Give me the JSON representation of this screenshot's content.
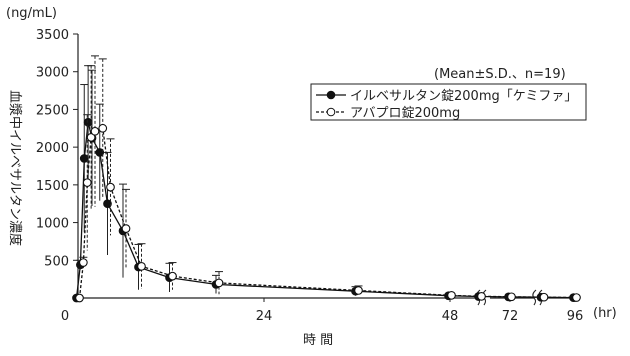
{
  "chart_data": {
    "type": "line",
    "ylabel_unit": "(ng/mL)",
    "ylabel": "血漿中イルベサルタン濃度",
    "xlabel": "時 間",
    "x_unit": "(hr)",
    "annotation": "(Mean±S.D.、n=19)",
    "ylim": [
      0,
      3500
    ],
    "y_ticks": [
      "0",
      "500",
      "1000",
      "1500",
      "2000",
      "2500",
      "3000",
      "3500"
    ],
    "x_ticks": [
      "0",
      "24",
      "48",
      "72",
      "96"
    ],
    "axis_breaks": true,
    "legend_position": "top-right",
    "x": [
      0,
      0.5,
      1,
      1.5,
      2,
      3,
      4,
      6,
      8,
      12,
      18,
      36,
      48,
      60,
      72,
      84,
      96
    ],
    "series": [
      {
        "name": "イルベサルタン錠200mg「ケミファ」",
        "marker": "filled-circle",
        "line": "solid",
        "color": "#111111",
        "values": [
          0,
          440,
          1850,
          2330,
          2120,
          1930,
          1250,
          890,
          410,
          270,
          180,
          90,
          30,
          20,
          15,
          10,
          5
        ],
        "sd": [
          0,
          60,
          980,
          750,
          900,
          640,
          680,
          620,
          300,
          190,
          120,
          60,
          20,
          10,
          5,
          5,
          5
        ]
      },
      {
        "name": "アバプロ錠200mg",
        "marker": "open-circle",
        "line": "dashed",
        "color": "#111111",
        "values": [
          0,
          470,
          1530,
          2130,
          2210,
          2250,
          1470,
          920,
          420,
          290,
          200,
          100,
          35,
          22,
          16,
          11,
          6
        ],
        "sd": [
          0,
          70,
          900,
          950,
          1000,
          920,
          640,
          520,
          300,
          180,
          150,
          60,
          20,
          10,
          5,
          5,
          5
        ]
      }
    ]
  }
}
